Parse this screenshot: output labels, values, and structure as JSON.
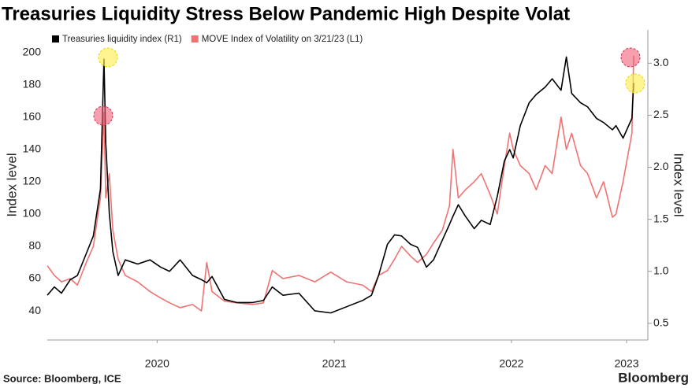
{
  "chart_data": {
    "type": "line",
    "title": "Treasuries Liquidity Stress Below Pandemic High Despite Volat",
    "ylabel": "Index level",
    "y2label": "Index level",
    "source": "Source: Bloomberg, ICE",
    "brand": "Bloomberg",
    "x": [
      2019.88,
      2019.92,
      2019.96,
      2020.01,
      2020.05,
      2020.1,
      2020.14,
      2020.18,
      2020.2,
      2020.21,
      2020.23,
      2020.25,
      2020.28,
      2020.32,
      2020.39,
      2020.46,
      2020.52,
      2020.57,
      2020.63,
      2020.7,
      2020.75,
      2020.78,
      2020.81,
      2020.88,
      2020.95,
      2021.04,
      2021.1,
      2021.15,
      2021.21,
      2021.3,
      2021.39,
      2021.48,
      2021.57,
      2021.66,
      2021.71,
      2021.75,
      2021.8,
      2021.84,
      2021.88,
      2021.93,
      2021.97,
      2022.02,
      2022.06,
      2022.11,
      2022.15,
      2022.17,
      2022.2,
      2022.24,
      2022.29,
      2022.33,
      2022.38,
      2022.42,
      2022.46,
      2022.49,
      2022.51,
      2022.55,
      2022.6,
      2022.64,
      2022.69,
      2022.73,
      2022.78,
      2022.81,
      2022.84,
      2022.89,
      2022.93,
      2022.98,
      2023.02,
      2023.07,
      2023.09,
      2023.13,
      2023.18,
      2023.19
    ],
    "series": [
      {
        "name": "Treasuries liquidity index (R1)",
        "color": "#000000",
        "axis": "y2",
        "values": [
          0.77,
          0.85,
          0.79,
          0.92,
          0.96,
          1.17,
          1.34,
          1.79,
          3.04,
          2.24,
          1.56,
          1.19,
          0.96,
          1.11,
          1.07,
          1.11,
          1.04,
          1.0,
          1.11,
          0.96,
          0.92,
          0.89,
          0.95,
          0.73,
          0.7,
          0.7,
          0.72,
          0.85,
          0.77,
          0.79,
          0.62,
          0.6,
          0.66,
          0.72,
          0.77,
          0.96,
          1.26,
          1.35,
          1.34,
          1.26,
          1.23,
          1.04,
          1.11,
          1.3,
          1.45,
          1.53,
          1.64,
          1.53,
          1.41,
          1.49,
          1.45,
          1.72,
          2.06,
          2.17,
          2.09,
          2.4,
          2.62,
          2.7,
          2.77,
          2.85,
          2.74,
          3.06,
          2.71,
          2.62,
          2.58,
          2.47,
          2.43,
          2.36,
          2.4,
          2.28,
          2.47,
          2.81
        ]
      },
      {
        "name": "MOVE Index of Volatility on 3/21/23 (L1)",
        "color": "#f07373",
        "values": [
          68,
          62,
          58,
          60,
          56,
          70,
          80,
          110,
          163,
          110,
          125,
          90,
          72,
          62,
          58,
          52,
          48,
          45,
          42,
          44,
          40,
          70,
          52,
          46,
          45,
          44,
          45,
          65,
          60,
          62,
          58,
          64,
          58,
          56,
          52,
          62,
          65,
          72,
          80,
          74,
          70,
          75,
          82,
          90,
          105,
          140,
          110,
          115,
          120,
          125,
          112,
          100,
          130,
          150,
          140,
          130,
          125,
          115,
          130,
          125,
          160,
          140,
          150,
          130,
          125,
          110,
          120,
          98,
          100,
          120,
          150,
          198
        ]
      }
    ],
    "xlim": [
      2019.88,
      2023.27
    ],
    "xticks": [
      {
        "value": 2020.5,
        "label": "2020"
      },
      {
        "value": 2021.5,
        "label": "2021"
      },
      {
        "value": 2022.5,
        "label": "2022"
      },
      {
        "value": 2023.15,
        "label": "2023"
      }
    ],
    "ylim": [
      22,
      214
    ],
    "yticks": [
      40,
      60,
      80,
      100,
      120,
      140,
      160,
      180,
      200
    ],
    "y2lim": [
      0.34,
      3.32
    ],
    "y2ticks": [
      0.5,
      {
        "value": 1,
        "label": "1.0"
      },
      1.5,
      {
        "value": 2,
        "label": "2.0"
      },
      2.5,
      {
        "value": 3,
        "label": "3.0"
      }
    ],
    "grid": false,
    "legend": "top-left"
  }
}
